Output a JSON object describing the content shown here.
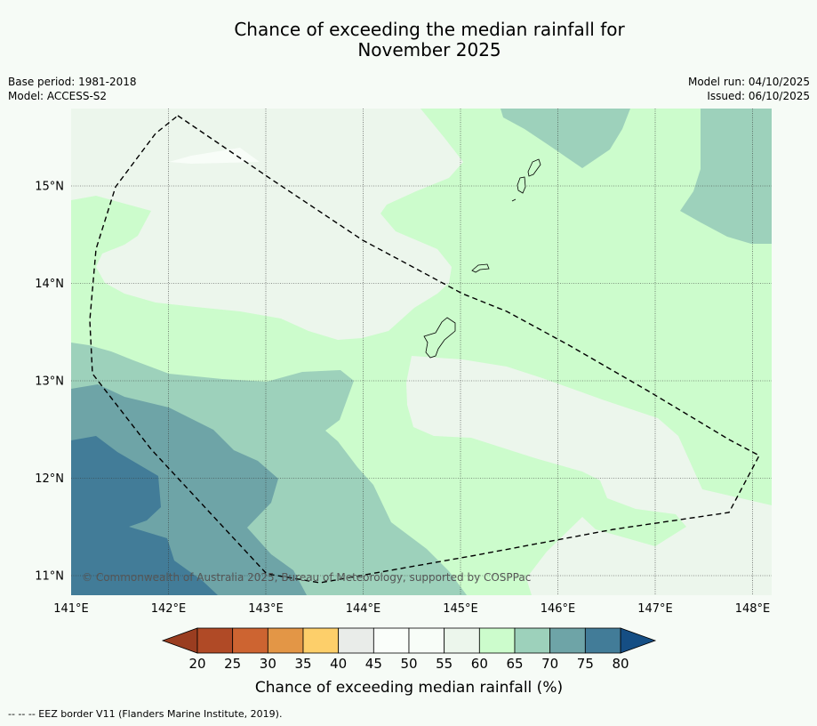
{
  "title_line1": "Chance of exceeding the median rainfall for",
  "title_line2": "November 2025",
  "info": {
    "base_period": "Base period: 1981-2018",
    "model": "Model: ACCESS-S2",
    "model_run": "Model run: 04/10/2025",
    "issued": "Issued: 06/10/2025"
  },
  "map": {
    "lon_ticks": [
      "141°E",
      "142°E",
      "143°E",
      "144°E",
      "145°E",
      "146°E",
      "147°E",
      "148°E"
    ],
    "lat_ticks": [
      "15°N",
      "14°N",
      "13°N",
      "12°N",
      "11°N"
    ],
    "copyright": "© Commonwealth of Australia 2025, Bureau of Meteorology, supported by COSPPac"
  },
  "colorbar": {
    "ticks": [
      "20",
      "25",
      "30",
      "35",
      "40",
      "45",
      "50",
      "55",
      "60",
      "65",
      "70",
      "75",
      "80"
    ],
    "colors": [
      "#b04a26",
      "#cd6431",
      "#e39646",
      "#fdcf6a",
      "#e9ece9",
      "#fafefa",
      "#f8fdf8",
      "#ecf6ec",
      "#ccfccc",
      "#9dd1bb",
      "#6ea4a7",
      "#427c98"
    ],
    "under_color": "#9a3d20",
    "over_color": "#154e84",
    "title": "Chance of exceeding median rainfall (%)"
  },
  "footnote": "--  --  -- EEZ border V11 (Flanders Marine Institute, 2019)."
}
